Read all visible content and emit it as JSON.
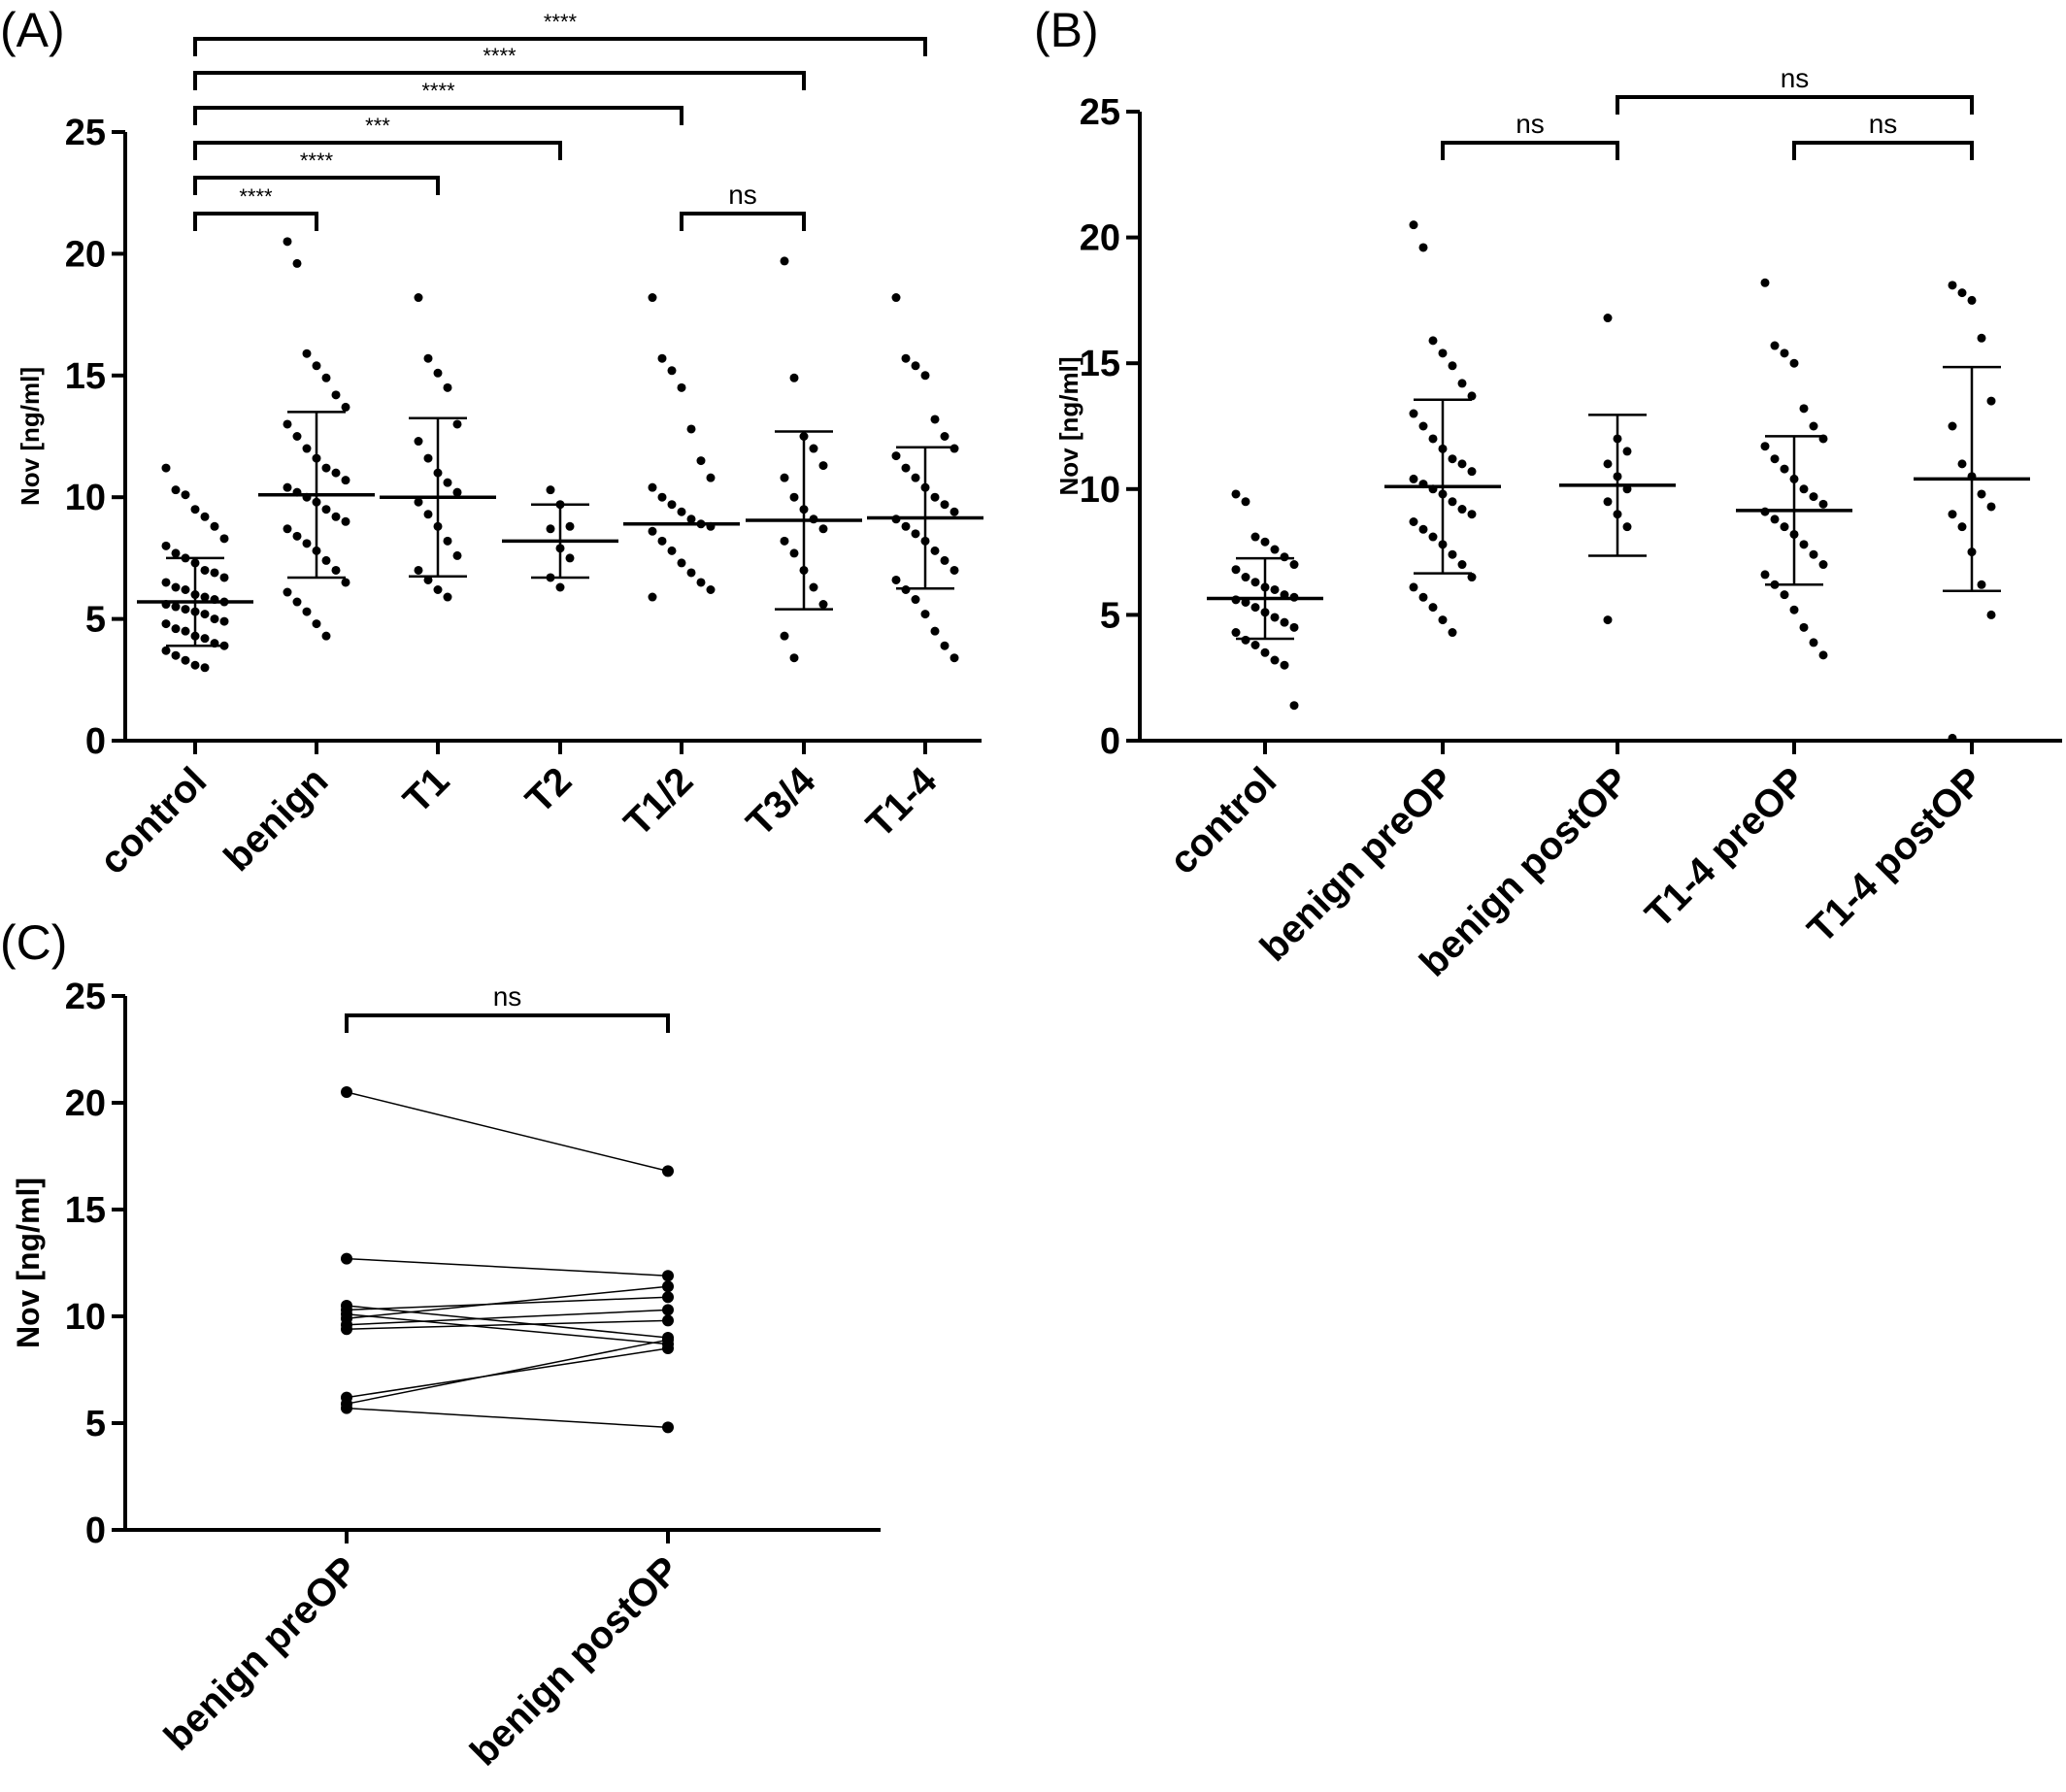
{
  "chart_data": [
    {
      "type": "dot",
      "panel_label": "(A)",
      "ylabel": "Nov [ng/ml]",
      "ylim": [
        0,
        25
      ],
      "yticks": [
        0,
        5,
        10,
        15,
        20,
        25
      ],
      "categories": [
        "control",
        "benign",
        "T1",
        "T2",
        "T1/2",
        "T3/4",
        "T1-4"
      ],
      "points": [
        [
          11.2,
          10.3,
          10.1,
          9.5,
          9.2,
          8.8,
          8.3,
          8.0,
          7.7,
          7.5,
          7.3,
          7.0,
          6.9,
          6.7,
          6.5,
          6.3,
          6.2,
          6.0,
          5.9,
          5.8,
          5.7,
          5.6,
          5.5,
          5.4,
          5.3,
          5.2,
          5.0,
          4.9,
          4.8,
          4.6,
          4.5,
          4.3,
          4.2,
          4.0,
          3.9,
          3.7,
          3.5,
          3.3,
          3.1,
          3.0
        ],
        [
          20.5,
          19.6,
          15.9,
          15.4,
          14.9,
          14.2,
          13.7,
          13.0,
          12.5,
          12.0,
          11.6,
          11.2,
          11.0,
          10.7,
          10.4,
          10.2,
          10.0,
          9.8,
          9.5,
          9.2,
          9.0,
          8.7,
          8.4,
          8.1,
          7.8,
          7.4,
          7.0,
          6.5,
          6.1,
          5.7,
          5.3,
          4.8,
          4.3
        ],
        [
          18.2,
          15.7,
          15.1,
          14.5,
          13.0,
          12.3,
          11.6,
          11.0,
          10.6,
          10.2,
          9.8,
          9.3,
          8.8,
          8.2,
          7.6,
          7.0,
          6.6,
          6.2,
          5.9
        ],
        [
          10.3,
          9.7,
          8.8,
          8.7,
          7.9,
          7.5,
          6.7,
          6.3
        ],
        [
          18.2,
          15.7,
          15.2,
          14.5,
          12.8,
          11.5,
          10.8,
          10.4,
          10.0,
          9.7,
          9.4,
          9.1,
          8.9,
          8.8,
          8.6,
          8.2,
          7.8,
          7.3,
          6.9,
          6.5,
          6.2,
          5.9
        ],
        [
          19.7,
          14.9,
          12.5,
          12.0,
          11.3,
          10.8,
          10.0,
          9.5,
          9.1,
          8.7,
          8.2,
          7.7,
          7.0,
          6.3,
          5.6,
          4.3,
          3.4
        ],
        [
          18.2,
          15.7,
          15.4,
          15.0,
          13.2,
          12.5,
          12.0,
          11.7,
          11.2,
          10.8,
          10.4,
          10.0,
          9.7,
          9.4,
          9.1,
          8.8,
          8.5,
          8.2,
          7.8,
          7.4,
          7.0,
          6.6,
          6.2,
          5.8,
          5.2,
          4.5,
          3.9,
          3.4
        ]
      ],
      "means": [
        5.7,
        10.1,
        10.0,
        8.2,
        8.9,
        9.05,
        9.15
      ],
      "sds": [
        1.8,
        3.4,
        3.25,
        1.5,
        null,
        3.65,
        2.9
      ],
      "brackets": [
        {
          "pair": [
            0,
            6
          ],
          "label": "****"
        },
        {
          "pair": [
            0,
            5
          ],
          "label": "****"
        },
        {
          "pair": [
            0,
            4
          ],
          "label": "****"
        },
        {
          "pair": [
            0,
            3
          ],
          "label": "***"
        },
        {
          "pair": [
            0,
            2
          ],
          "label": "****"
        },
        {
          "pair": [
            0,
            1
          ],
          "label": "****"
        },
        {
          "pair": [
            4,
            5
          ],
          "label": "ns"
        }
      ]
    },
    {
      "type": "dot",
      "panel_label": "(B)",
      "ylabel": "Nov [ng/ml]",
      "ylim": [
        0,
        25
      ],
      "yticks": [
        0,
        5,
        10,
        15,
        20,
        25
      ],
      "categories": [
        "control",
        "benign preOP",
        "benign postOP",
        "T1-4 preOP",
        "T1-4 postOP"
      ],
      "points": [
        [
          9.8,
          9.5,
          8.1,
          7.9,
          7.6,
          7.3,
          7.0,
          6.8,
          6.5,
          6.3,
          6.1,
          6.0,
          5.8,
          5.7,
          5.6,
          5.5,
          5.3,
          5.1,
          4.9,
          4.7,
          4.5,
          4.3,
          4.0,
          3.8,
          3.5,
          3.2,
          3.0,
          1.4
        ],
        [
          20.5,
          19.6,
          15.9,
          15.4,
          14.9,
          14.2,
          13.7,
          13.0,
          12.5,
          12.0,
          11.6,
          11.2,
          11.0,
          10.7,
          10.4,
          10.2,
          10.0,
          9.8,
          9.5,
          9.2,
          9.0,
          8.7,
          8.4,
          8.1,
          7.8,
          7.4,
          7.0,
          6.5,
          6.1,
          5.7,
          5.3,
          4.8,
          4.3
        ],
        [
          16.8,
          12.0,
          11.5,
          11.0,
          10.5,
          10.0,
          9.5,
          9.0,
          8.5,
          4.8
        ],
        [
          18.2,
          15.7,
          15.4,
          15.0,
          13.2,
          12.5,
          12.0,
          11.7,
          11.2,
          10.8,
          10.4,
          10.0,
          9.7,
          9.4,
          9.1,
          8.8,
          8.5,
          8.2,
          7.8,
          7.4,
          7.0,
          6.6,
          6.2,
          5.8,
          5.2,
          4.5,
          3.9,
          3.4
        ],
        [
          18.1,
          17.8,
          17.5,
          16.0,
          13.5,
          12.5,
          11.0,
          10.5,
          9.8,
          9.3,
          9.0,
          8.5,
          7.5,
          6.2,
          5.0,
          0.1
        ]
      ],
      "means": [
        5.65,
        10.1,
        10.15,
        9.15,
        10.4
      ],
      "sds": [
        1.6,
        3.45,
        2.8,
        2.95,
        4.45
      ],
      "brackets": [
        {
          "pair": [
            1,
            2
          ],
          "label": "ns"
        },
        {
          "pair": [
            2,
            4
          ],
          "label": "ns"
        },
        {
          "pair": [
            3,
            4
          ],
          "label": "ns"
        }
      ]
    },
    {
      "type": "paired",
      "panel_label": "(C)",
      "ylabel": "Nov [ng/ml]",
      "ylim": [
        0,
        25
      ],
      "yticks": [
        0,
        5,
        10,
        15,
        20,
        25
      ],
      "categories": [
        "benign preOP",
        "benign postOP"
      ],
      "pre": [
        20.5,
        12.7,
        10.5,
        10.3,
        10.1,
        9.9,
        9.6,
        9.4,
        6.2,
        5.9,
        5.7
      ],
      "post": [
        16.8,
        11.9,
        9.0,
        10.9,
        8.7,
        11.4,
        10.3,
        9.8,
        8.5,
        8.9,
        4.8
      ],
      "brackets": [
        {
          "pair": [
            0,
            1
          ],
          "label": "ns"
        }
      ]
    }
  ]
}
